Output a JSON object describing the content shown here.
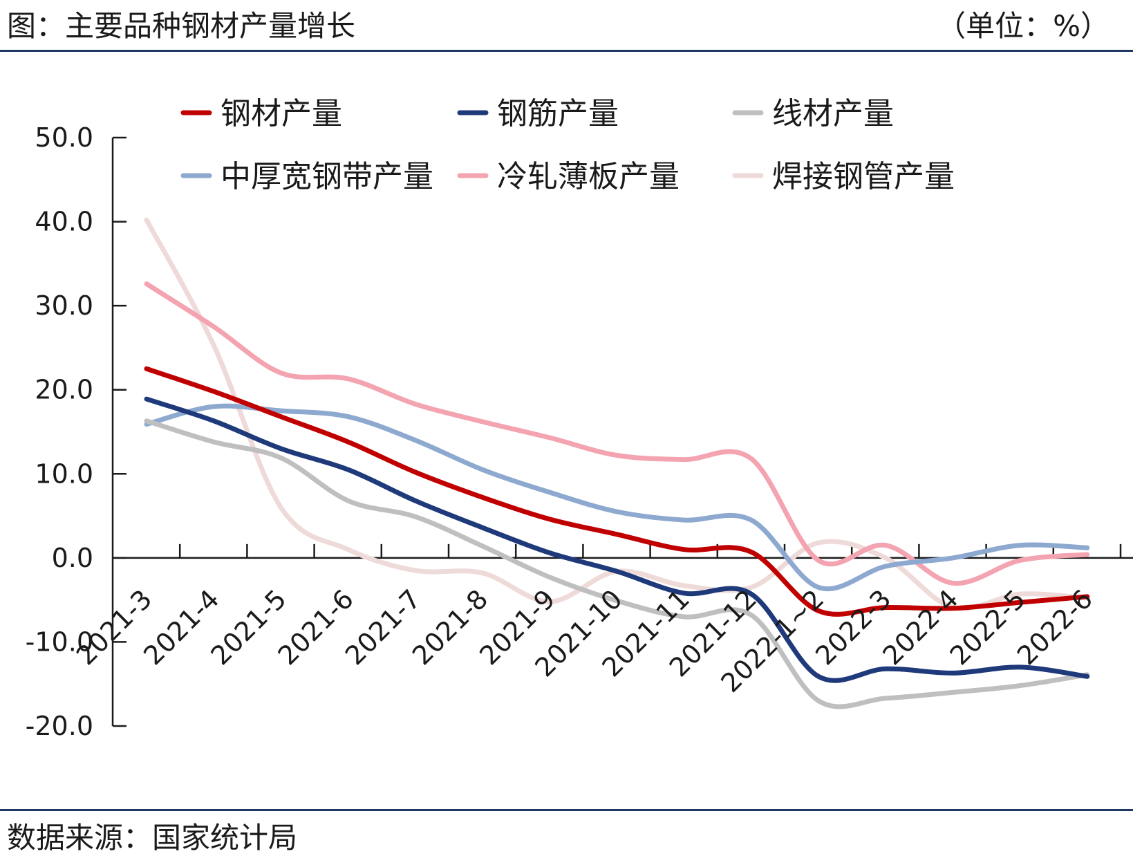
{
  "header": {
    "title": "图：主要品种钢材产量增长",
    "unit": "（单位：%）"
  },
  "footer": {
    "source": "数据来源：国家统计局"
  },
  "colors": {
    "rule": "#1f3864",
    "axis": "#1a1a1a"
  },
  "chart_data": {
    "type": "line",
    "title": "",
    "xlabel": "",
    "ylabel": "",
    "ylim": [
      -20,
      50
    ],
    "yticks": [
      "50.0",
      "40.0",
      "30.0",
      "20.0",
      "10.0",
      "0.0",
      "-10.0",
      "-20.0"
    ],
    "ytick_values": [
      50,
      40,
      30,
      20,
      10,
      0,
      -10,
      -20
    ],
    "categories": [
      "2021-3",
      "2021-4",
      "2021-5",
      "2021-6",
      "2021-7",
      "2021-8",
      "2021-9",
      "2021-10",
      "2021-11",
      "2021-12",
      "2022-1~2",
      "2022-3",
      "2022-4",
      "2022-5",
      "2022-6"
    ],
    "grid": false,
    "legend_position": "top",
    "series": [
      {
        "name": "钢材产量",
        "color": "#c00000",
        "values": [
          22.5,
          19.8,
          16.8,
          13.8,
          10.2,
          7.2,
          4.6,
          2.8,
          1.0,
          0.7,
          -6.3,
          -5.9,
          -6.0,
          -5.3,
          -4.6
        ]
      },
      {
        "name": "钢筋产量",
        "color": "#1f3a7a",
        "values": [
          18.9,
          16.3,
          13.0,
          10.5,
          6.8,
          3.6,
          0.6,
          -1.6,
          -4.2,
          -4.3,
          -14.1,
          -13.2,
          -13.7,
          -13.0,
          -14.1
        ]
      },
      {
        "name": "线材产量",
        "color": "#bfbfbf",
        "values": [
          16.3,
          13.8,
          11.9,
          6.8,
          4.9,
          1.4,
          -2.3,
          -5.1,
          -7.0,
          -6.8,
          -17.0,
          -16.7,
          -16.0,
          -15.2,
          -13.9
        ]
      },
      {
        "name": "中厚宽钢带产量",
        "color": "#8ea9cf",
        "values": [
          15.9,
          18.0,
          17.5,
          16.8,
          14.0,
          10.5,
          7.8,
          5.5,
          4.5,
          4.5,
          -3.5,
          -1.0,
          0.0,
          1.5,
          1.2
        ]
      },
      {
        "name": "冷轧薄板产量",
        "color": "#f4a3b0",
        "values": [
          32.6,
          27.5,
          22.0,
          21.3,
          18.3,
          16.2,
          14.3,
          12.2,
          11.7,
          11.8,
          -0.3,
          1.5,
          -3.0,
          -0.3,
          0.4
        ]
      },
      {
        "name": "焊接钢管产量",
        "color": "#eedad8",
        "values": [
          40.2,
          25.3,
          6.0,
          1.0,
          -1.5,
          -1.8,
          -5.2,
          -1.6,
          -3.3,
          -3.5,
          1.8,
          0.0,
          -5.9,
          -4.3,
          -4.8
        ]
      }
    ]
  }
}
